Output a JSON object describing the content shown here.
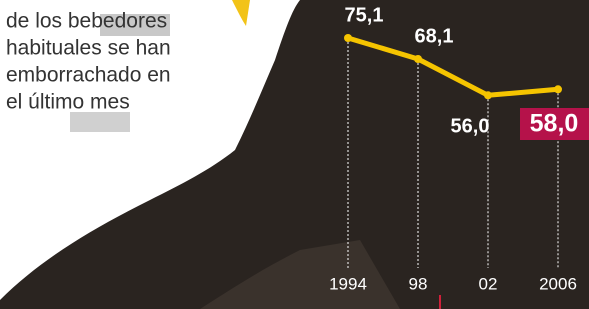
{
  "chart_data": {
    "type": "line",
    "annotation": [
      "de los bebedores",
      "habituales se han",
      "emborrachado en",
      "el último mes"
    ],
    "categories": [
      "1994",
      "98",
      "02",
      "2006"
    ],
    "series": [
      {
        "color": "#f5c400",
        "values": [
          75.1,
          68.1,
          56.0,
          58.0
        ],
        "value_labels": [
          "75,1",
          "68,1",
          "56,0",
          "58,0"
        ]
      }
    ]
  }
}
